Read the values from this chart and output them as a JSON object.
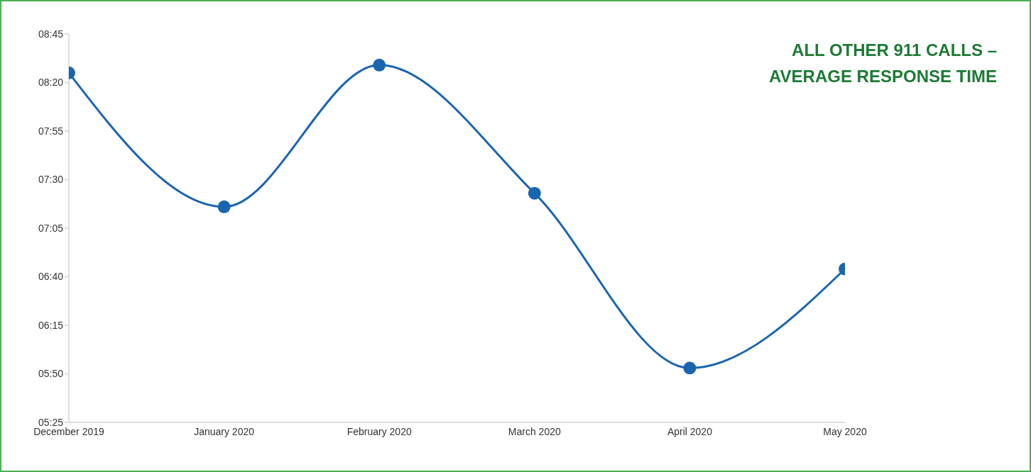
{
  "chart_data": {
    "type": "line",
    "title": "ALL OTHER 911 CALLS – AVERAGE RESPONSE TIME",
    "categories": [
      "December 2019",
      "January 2020",
      "February 2020",
      "March 2020",
      "April 2020",
      "May 2020"
    ],
    "series": [
      {
        "color": "#1a65b0",
        "values": [
          505,
          436,
          509,
          443,
          353,
          404
        ]
      }
    ],
    "ylim": [
      325,
      525
    ],
    "yticks": [
      {
        "value": 325,
        "label": "05:25"
      },
      {
        "value": 350,
        "label": "05:50"
      },
      {
        "value": 375,
        "label": "06:15"
      },
      {
        "value": 400,
        "label": "06:40"
      },
      {
        "value": 425,
        "label": "07:05"
      },
      {
        "value": 450,
        "label": "07:30"
      },
      {
        "value": 475,
        "label": "07:55"
      },
      {
        "value": 500,
        "label": "08:20"
      },
      {
        "value": 525,
        "label": "08:45"
      }
    ],
    "grid": false,
    "legend": false,
    "marker": "circle",
    "line_style": "solid"
  }
}
